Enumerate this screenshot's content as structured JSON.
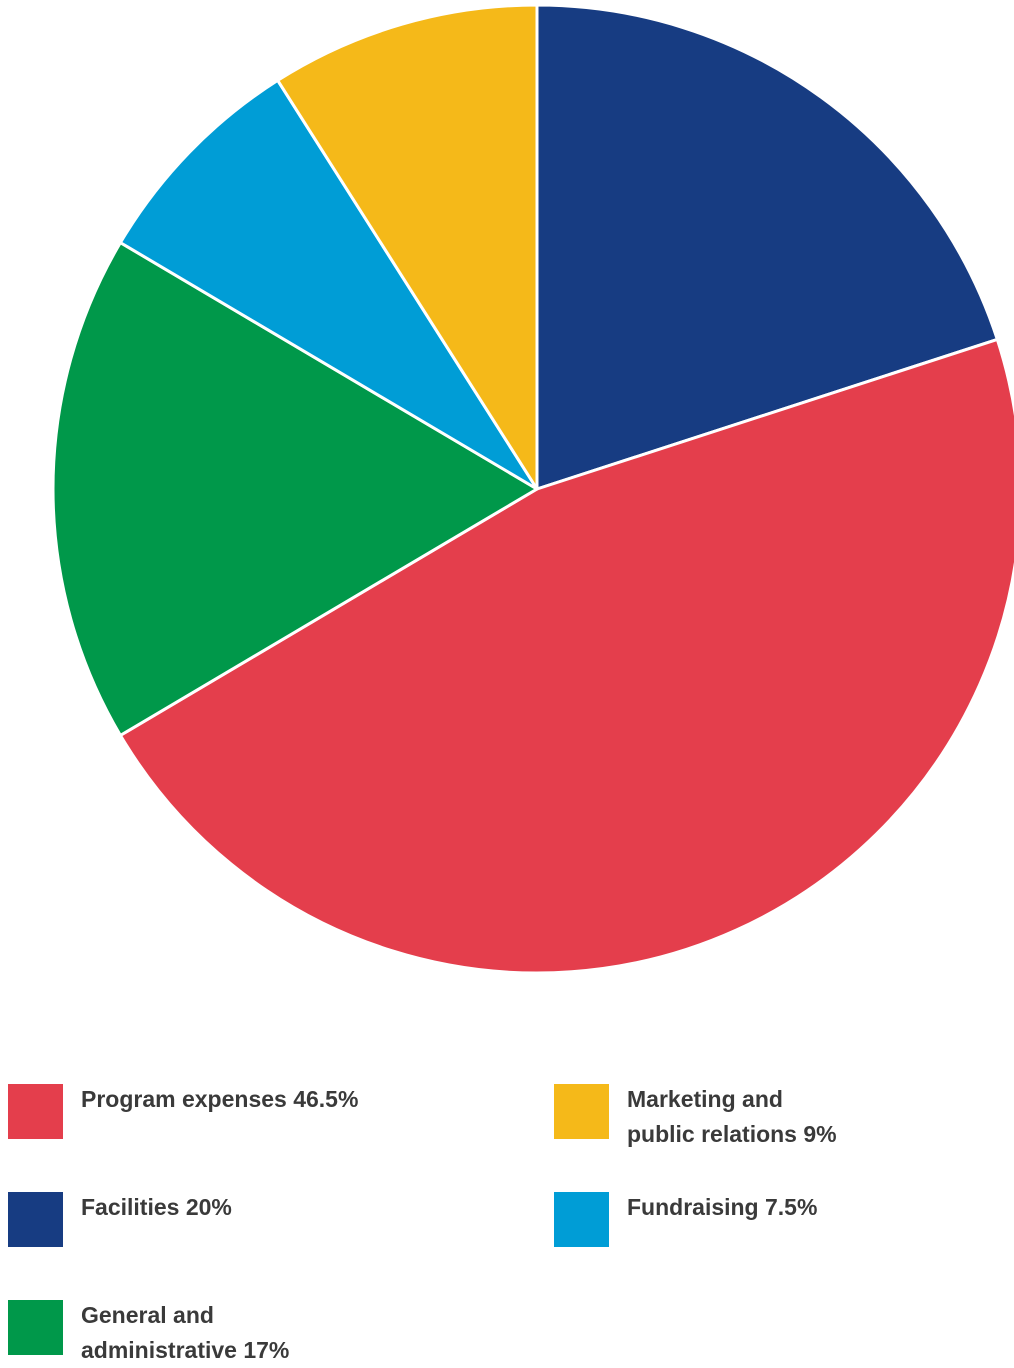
{
  "chart_data": {
    "type": "pie",
    "slices": [
      {
        "name": "Facilities",
        "value": 20,
        "label": "Facilities 20%",
        "color": "#173c82"
      },
      {
        "name": "Program expenses",
        "value": 46.5,
        "label": "Program expenses 46.5%",
        "color": "#e43e4c"
      },
      {
        "name": "General and administrative",
        "value": 17,
        "label": "General and\nadministrative 17%",
        "color": "#00984a"
      },
      {
        "name": "Fundraising",
        "value": 7.5,
        "label": "Fundraising  7.5%",
        "color": "#009dd6"
      },
      {
        "name": "Marketing and public relations",
        "value": 9,
        "label": "Marketing and\npublic relations 9%",
        "color": "#f5b919"
      }
    ],
    "legend_order": [
      "Program expenses",
      "Facilities",
      "General and administrative",
      "Marketing and public relations",
      "Fundraising"
    ],
    "legend_placement": "bottom",
    "start": "top, clockwise"
  }
}
